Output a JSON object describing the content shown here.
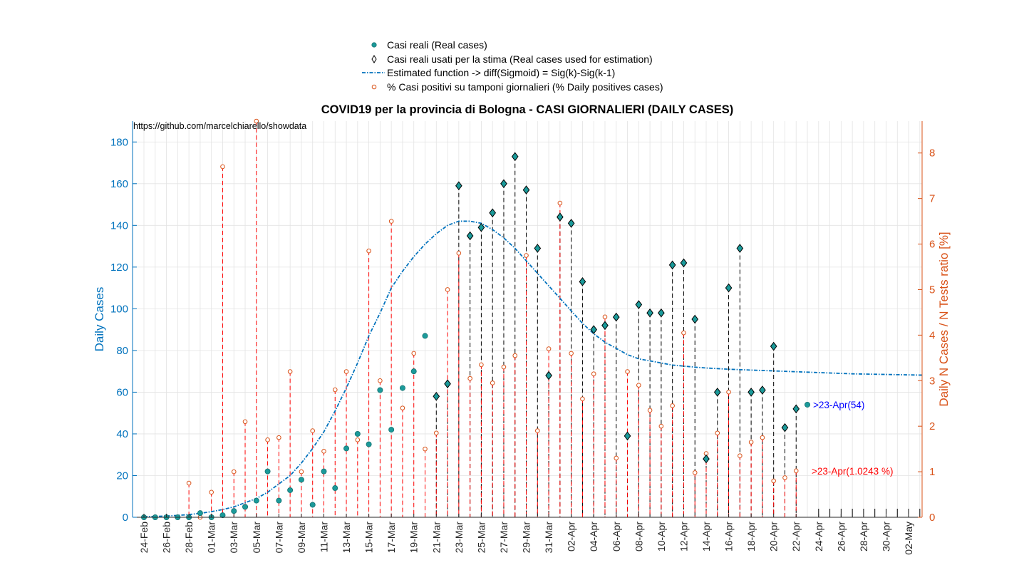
{
  "chart_data": {
    "type": "scatter",
    "title": "COVID19 per la provincia di Bologna - CASI GIORNALIERI (DAILY CASES)",
    "source_note": "https://github.com/marcelchiarello/showdata",
    "ylabel_left": "Daily Cases",
    "ylabel_right": "Daily N Cases / N Tests ratio [%]",
    "ylim_left": [
      0,
      190
    ],
    "ylim_right": [
      0,
      8.7
    ],
    "yticks_left": [
      0,
      20,
      40,
      60,
      80,
      100,
      120,
      140,
      160,
      180
    ],
    "yticks_right": [
      0,
      1,
      2,
      3,
      4,
      5,
      6,
      7,
      8
    ],
    "grid": true,
    "legend_placement": "top-center",
    "x_dates": [
      "24-Feb",
      "25-Feb",
      "26-Feb",
      "27-Feb",
      "28-Feb",
      "29-Feb",
      "01-Mar",
      "02-Mar",
      "03-Mar",
      "04-Mar",
      "05-Mar",
      "06-Mar",
      "07-Mar",
      "08-Mar",
      "09-Mar",
      "10-Mar",
      "11-Mar",
      "12-Mar",
      "13-Mar",
      "14-Mar",
      "15-Mar",
      "16-Mar",
      "17-Mar",
      "18-Mar",
      "19-Mar",
      "20-Mar",
      "21-Mar",
      "22-Mar",
      "23-Mar",
      "24-Mar",
      "25-Mar",
      "26-Mar",
      "27-Mar",
      "28-Mar",
      "29-Mar",
      "30-Mar",
      "31-Mar",
      "01-Apr",
      "02-Apr",
      "03-Apr",
      "04-Apr",
      "05-Apr",
      "06-Apr",
      "07-Apr",
      "08-Apr",
      "09-Apr",
      "10-Apr",
      "11-Apr",
      "12-Apr",
      "13-Apr",
      "14-Apr",
      "15-Apr",
      "16-Apr",
      "17-Apr",
      "18-Apr",
      "19-Apr",
      "20-Apr",
      "21-Apr",
      "22-Apr",
      "23-Apr",
      "24-Apr",
      "25-Apr",
      "26-Apr",
      "27-Apr",
      "28-Apr",
      "29-Apr",
      "30-Apr",
      "01-May",
      "02-May",
      "03-May",
      "04-May"
    ],
    "x_tick_labels": [
      "24-Feb",
      "26-Feb",
      "28-Feb",
      "01-Mar",
      "03-Mar",
      "05-Mar",
      "07-Mar",
      "09-Mar",
      "11-Mar",
      "13-Mar",
      "15-Mar",
      "17-Mar",
      "19-Mar",
      "21-Mar",
      "23-Mar",
      "25-Mar",
      "27-Mar",
      "29-Mar",
      "31-Mar",
      "02-Apr",
      "04-Apr",
      "06-Apr",
      "08-Apr",
      "10-Apr",
      "12-Apr",
      "14-Apr",
      "16-Apr",
      "18-Apr",
      "20-Apr",
      "22-Apr",
      "24-Apr",
      "26-Apr",
      "28-Apr",
      "30-Apr",
      "02-May"
    ],
    "legend": [
      "Casi reali (Real cases)",
      "Casi reali usati per la stima (Real cases used for estimation)",
      "Estimated function -> diff(Sigmoid) = Sig(k)-Sig(k-1)",
      "% Casi positivi su tamponi giornalieri (% Daily positives cases)"
    ],
    "series": [
      {
        "name": "Casi reali (Real cases)",
        "start": "24-Feb",
        "values": [
          0,
          0,
          0,
          0,
          0,
          2,
          0,
          1,
          3,
          5,
          8,
          22,
          8,
          13,
          18,
          6,
          22,
          14,
          33,
          40,
          35,
          61,
          42,
          62,
          70,
          87,
          58,
          64,
          159,
          135,
          139,
          146,
          160,
          173,
          157,
          129,
          68,
          144,
          141,
          113,
          90,
          92,
          96,
          39,
          102,
          98,
          98,
          121,
          122,
          95,
          28,
          60,
          110,
          129,
          60,
          61,
          82,
          43,
          52,
          54
        ]
      },
      {
        "name": "Casi reali usati per la stima (Real cases used for estimation)",
        "start": "21-Mar",
        "values": [
          58,
          64,
          159,
          135,
          139,
          146,
          160,
          173,
          157,
          129,
          68,
          144,
          141,
          113,
          90,
          92,
          96,
          39,
          102,
          98,
          98,
          121,
          122,
          95,
          28,
          60,
          110,
          129,
          60,
          61,
          82,
          43,
          52
        ]
      },
      {
        "name": "Estimated function -> diff(Sigmoid) = Sig(k)-Sig(k-1)",
        "start": "24-Feb",
        "values": [
          0.3,
          0.4,
          0.6,
          0.9,
          1.3,
          1.9,
          2.7,
          3.7,
          5,
          7,
          9,
          12,
          16,
          20,
          26,
          33,
          41,
          51,
          62,
          74,
          87,
          98,
          110,
          118,
          125,
          131,
          136,
          140,
          142,
          142,
          141,
          138,
          134,
          129,
          123,
          117,
          111,
          105,
          99,
          93,
          88,
          84,
          81,
          78,
          76,
          75,
          74,
          73,
          72.5,
          72,
          71.6,
          71.3,
          71,
          70.8,
          70.6,
          70.4,
          70.2,
          70,
          69.8,
          69.6,
          69.4,
          69.2,
          69.0,
          68.8,
          68.7,
          68.6,
          68.5,
          68.4,
          68.3,
          68.2
        ]
      },
      {
        "name": "% Casi positivi su tamponi giornalieri (% Daily positives cases)",
        "start": "24-Feb",
        "values": [
          0,
          0,
          0,
          0,
          0.75,
          0,
          0.55,
          7.7,
          1.0,
          2.1,
          8.7,
          1.7,
          1.75,
          3.2,
          1.0,
          1.9,
          1.45,
          2.8,
          3.2,
          1.7,
          5.85,
          3.0,
          6.5,
          2.4,
          3.6,
          1.5,
          1.85,
          5.0,
          5.8,
          3.05,
          3.35,
          2.95,
          3.3,
          3.55,
          5.75,
          1.9,
          3.7,
          6.9,
          3.6,
          2.6,
          3.15,
          4.4,
          1.3,
          3.2,
          2.9,
          2.35,
          2.0,
          2.45,
          4.05,
          0.98,
          1.4,
          1.85,
          2.75,
          1.35,
          1.65,
          1.75,
          0.8,
          0.87,
          1.02
        ]
      }
    ],
    "annotations": [
      {
        "text": ">23-Apr(54)",
        "color": "#0000ff",
        "x": "23-Apr",
        "y_left": 54
      },
      {
        "text": ">23-Apr(1.0243 %)",
        "color": "#ff0000",
        "x": "23-Apr",
        "y_right": 1.0243
      }
    ],
    "colors": {
      "left_axis": "#0072bd",
      "right_axis": "#d95319",
      "real_cases_fill": "#1b9a9a",
      "estimate_line": "#0072bd",
      "ratio_marker": "#d95319",
      "ratio_stem": "#ff0000",
      "diamond_stem": "#000000",
      "grid": "#e3e3e3"
    }
  }
}
